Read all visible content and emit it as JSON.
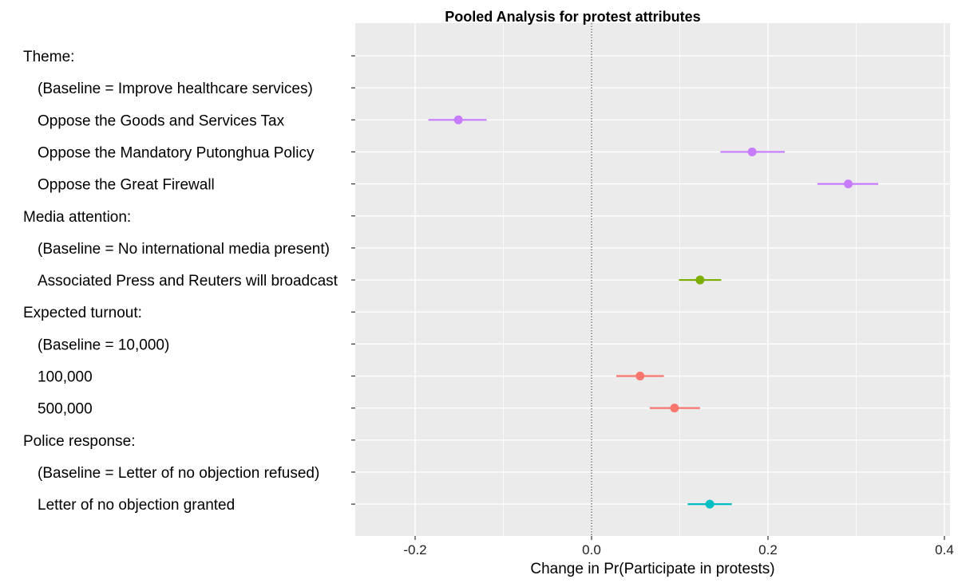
{
  "chart_data": {
    "type": "scatter",
    "title": "Pooled Analysis for protest attributes",
    "xlabel": "Change in Pr(Participate in protests)",
    "ylabel": "",
    "xlim": [
      -0.267,
      0.402
    ],
    "x_ticks": [
      "-0.2",
      "0.0",
      "0.2",
      "0.4"
    ],
    "x_tick_values": [
      -0.2,
      0.0,
      0.2,
      0.4
    ],
    "reference_line_x": 0.0,
    "grid": true,
    "legend": "none",
    "rows": [
      {
        "label": "Theme:",
        "header": true
      },
      {
        "label": "(Baseline = Improve healthcare services)"
      },
      {
        "label": "Oppose the Goods and Services Tax",
        "estimate": -0.151,
        "ci": [
          -0.185,
          -0.119
        ],
        "group": "theme"
      },
      {
        "label": "Oppose the Mandatory Putonghua Policy",
        "estimate": 0.182,
        "ci": [
          0.146,
          0.219
        ],
        "group": "theme"
      },
      {
        "label": "Oppose the Great Firewall",
        "estimate": 0.291,
        "ci": [
          0.256,
          0.325
        ],
        "group": "theme"
      },
      {
        "label": "Media attention:",
        "header": true
      },
      {
        "label": "(Baseline = No international media present)"
      },
      {
        "label": "Associated Press and Reuters will broadcast",
        "estimate": 0.123,
        "ci": [
          0.099,
          0.147
        ],
        "group": "media"
      },
      {
        "label": "Expected turnout:",
        "header": true
      },
      {
        "label": "(Baseline = 10,000)"
      },
      {
        "label": "100,000",
        "estimate": 0.055,
        "ci": [
          0.028,
          0.082
        ],
        "group": "turnout"
      },
      {
        "label": "500,000",
        "estimate": 0.094,
        "ci": [
          0.066,
          0.123
        ],
        "group": "turnout"
      },
      {
        "label": "Police response:",
        "header": true
      },
      {
        "label": "(Baseline = Letter of no objection refused)"
      },
      {
        "label": "Letter of no objection granted",
        "estimate": 0.134,
        "ci": [
          0.109,
          0.159
        ],
        "group": "police"
      }
    ],
    "colors": {
      "theme": "#c77cff",
      "media": "#7cae00",
      "turnout": "#f8766d",
      "police": "#00bfc4",
      "panel": "#ebebeb",
      "grid": "#ffffff"
    }
  }
}
